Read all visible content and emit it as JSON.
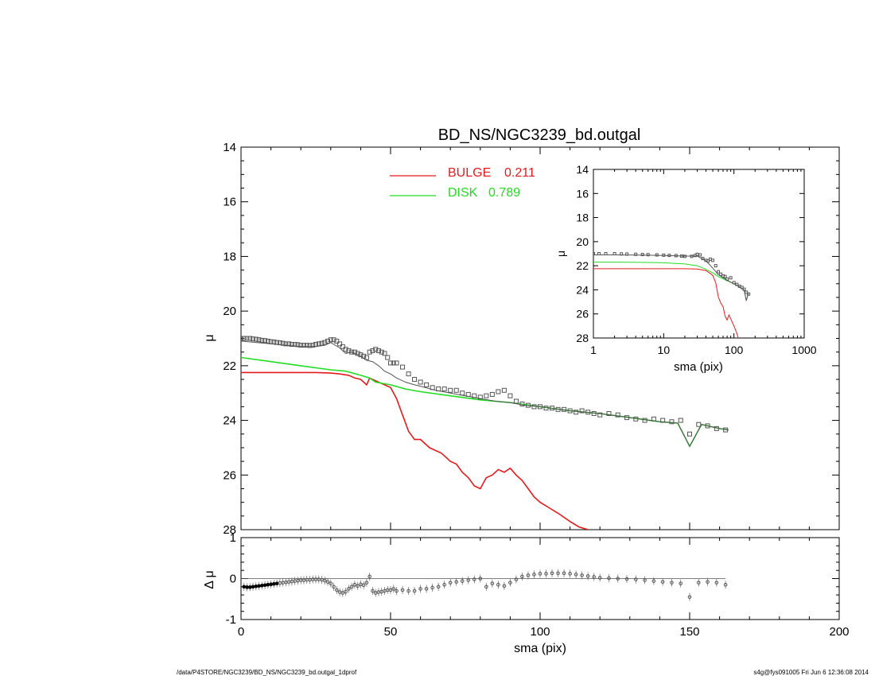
{
  "title": "BD_NS/NGC3239_bd.outgal",
  "footer": {
    "left": "/data/P4STORE/NGC3239/BD_NS/NGC3239_bd.outgal_1dprof",
    "right": "s4g@fys091005  Fri Jun  6 12:36:08 2014"
  },
  "colors": {
    "bulge": "#e8191c",
    "disk": "#22dd22",
    "total": "#555555",
    "data": "#555555",
    "axes": "#000000"
  },
  "chart_data": [
    {
      "id": "main",
      "type": "line",
      "title": "BD_NS/NGC3239_bd.outgal",
      "xlabel": "",
      "ylabel": "μ",
      "xlim": [
        0,
        200
      ],
      "ylim": [
        28,
        14
      ],
      "xticks": [
        "0",
        "50",
        "100",
        "150",
        "200"
      ],
      "yticks": [
        "14",
        "16",
        "18",
        "20",
        "22",
        "24",
        "26",
        "28"
      ],
      "legend": {
        "placement": "top-center",
        "entries": [
          {
            "label": "BULGE",
            "value": "0.211",
            "color": "#e8191c"
          },
          {
            "label": "DISK",
            "value": "0.789",
            "color": "#22dd22"
          }
        ]
      },
      "series": [
        {
          "name": "BULGE",
          "style": "line",
          "color": "#e8191c",
          "x": [
            0,
            5,
            10,
            15,
            20,
            25,
            30,
            33,
            36,
            38,
            40,
            42,
            43,
            45,
            47,
            50,
            52,
            54,
            56,
            58,
            60,
            63,
            65,
            67,
            70,
            72,
            74,
            76,
            78,
            80,
            82,
            84,
            86,
            88,
            90,
            92,
            94,
            96,
            98,
            100,
            103,
            106,
            110,
            113,
            116,
            118
          ],
          "y": [
            22.25,
            22.25,
            22.25,
            22.25,
            22.25,
            22.25,
            22.27,
            22.3,
            22.35,
            22.45,
            22.5,
            22.7,
            22.45,
            22.55,
            22.65,
            22.8,
            23.2,
            23.8,
            24.4,
            24.7,
            24.7,
            25.0,
            25.1,
            25.2,
            25.5,
            25.6,
            25.9,
            26.1,
            26.4,
            26.5,
            26.1,
            26.0,
            25.8,
            25.9,
            25.75,
            26.0,
            26.2,
            26.5,
            26.8,
            27.0,
            27.2,
            27.4,
            27.7,
            27.9,
            28.0,
            28.2
          ]
        },
        {
          "name": "DISK",
          "style": "line",
          "color": "#22dd22",
          "x": [
            0,
            10,
            20,
            30,
            35,
            40,
            43,
            45,
            50,
            55,
            60,
            70,
            80,
            90,
            100,
            110,
            120,
            130,
            140,
            146,
            150,
            154,
            160,
            163
          ],
          "y": [
            21.7,
            21.85,
            22.0,
            22.15,
            22.2,
            22.35,
            22.45,
            22.6,
            22.7,
            22.85,
            22.95,
            23.1,
            23.25,
            23.35,
            23.5,
            23.65,
            23.75,
            23.9,
            24.05,
            24.1,
            24.95,
            24.15,
            24.3,
            24.35
          ]
        },
        {
          "name": "",
          "style": "line",
          "color": "#555555",
          "x": [
            0,
            10,
            20,
            25,
            28,
            30,
            33,
            35,
            37,
            40,
            42,
            44,
            46,
            48,
            50,
            52,
            55,
            58,
            60,
            65,
            70,
            75,
            80,
            85,
            90,
            95,
            100,
            110,
            120,
            130,
            140,
            146,
            150,
            154,
            160,
            163
          ],
          "y": [
            21.1,
            21.2,
            21.3,
            21.3,
            21.25,
            21.15,
            21.35,
            21.55,
            21.5,
            21.65,
            21.8,
            21.85,
            22.0,
            22.2,
            22.3,
            22.45,
            22.6,
            22.7,
            22.75,
            22.9,
            23.0,
            23.1,
            23.2,
            23.3,
            23.35,
            23.45,
            23.5,
            23.65,
            23.75,
            23.9,
            24.05,
            24.1,
            24.95,
            24.15,
            24.3,
            24.35
          ]
        },
        {
          "name": "",
          "style": "squares",
          "color": "#555555",
          "x": [
            0,
            1,
            2,
            3,
            4,
            5,
            6,
            7,
            8,
            9,
            10,
            11,
            12,
            13,
            14,
            15,
            16,
            17,
            18,
            19,
            20,
            21,
            22,
            23,
            24,
            25,
            26,
            27,
            28,
            29,
            30,
            31,
            32,
            33,
            34,
            35,
            36,
            37,
            38,
            39,
            40,
            41,
            42,
            43,
            44,
            45,
            46,
            47,
            48,
            49,
            50,
            51,
            52,
            54,
            56,
            58,
            60,
            62,
            64,
            66,
            68,
            70,
            72,
            74,
            76,
            78,
            80,
            82,
            84,
            86,
            88,
            90,
            92,
            94,
            96,
            98,
            100,
            102,
            104,
            106,
            108,
            110,
            112,
            114,
            116,
            118,
            120,
            123,
            126,
            129,
            132,
            135,
            138,
            141,
            144,
            147,
            150,
            153,
            156,
            159,
            162
          ],
          "y": [
            21.0,
            21.0,
            21.0,
            21.0,
            21.02,
            21.03,
            21.05,
            21.07,
            21.08,
            21.1,
            21.12,
            21.13,
            21.15,
            21.16,
            21.18,
            21.2,
            21.2,
            21.22,
            21.22,
            21.23,
            21.25,
            21.25,
            21.25,
            21.26,
            21.25,
            21.22,
            21.2,
            21.18,
            21.15,
            21.1,
            21.05,
            21.05,
            21.1,
            21.2,
            21.3,
            21.4,
            21.45,
            21.5,
            21.5,
            21.55,
            21.6,
            21.65,
            21.7,
            21.5,
            21.45,
            21.4,
            21.45,
            21.5,
            21.55,
            21.7,
            21.9,
            21.9,
            21.9,
            22.05,
            22.3,
            22.5,
            22.6,
            22.7,
            22.8,
            22.85,
            22.85,
            22.9,
            22.9,
            23.0,
            23.05,
            23.1,
            23.15,
            23.1,
            23.05,
            22.95,
            22.9,
            23.1,
            23.3,
            23.4,
            23.45,
            23.5,
            23.5,
            23.55,
            23.55,
            23.6,
            23.6,
            23.65,
            23.7,
            23.65,
            23.7,
            23.75,
            23.8,
            23.75,
            23.8,
            23.9,
            23.95,
            24.0,
            23.95,
            24.0,
            24.05,
            24.0,
            24.5,
            24.15,
            24.2,
            24.3,
            24.35
          ]
        }
      ]
    },
    {
      "id": "inset",
      "type": "line",
      "title": "",
      "xlabel": "sma (pix)",
      "ylabel": "μ",
      "xscale": "log",
      "xlim": [
        1,
        1000
      ],
      "ylim": [
        28,
        14
      ],
      "xticks": [
        "1",
        "10",
        "100",
        "1000"
      ],
      "yticks": [
        "14",
        "16",
        "18",
        "20",
        "22",
        "24",
        "26",
        "28"
      ],
      "series": [
        {
          "name": "BULGE",
          "style": "line",
          "color": "#e8191c",
          "x": [
            1,
            2,
            5,
            10,
            20,
            30,
            40,
            45,
            50,
            55,
            60,
            65,
            70,
            75,
            80,
            85,
            90,
            100,
            110,
            118
          ],
          "y": [
            22.25,
            22.25,
            22.25,
            22.25,
            22.25,
            22.27,
            22.4,
            22.6,
            22.8,
            23.4,
            24.6,
            25.1,
            25.4,
            26.2,
            26.5,
            26.1,
            26.4,
            27.0,
            27.6,
            28.2
          ]
        },
        {
          "name": "DISK",
          "style": "line",
          "color": "#22dd22",
          "x": [
            1,
            2,
            5,
            10,
            20,
            30,
            40,
            50,
            60,
            80,
            100,
            120,
            140,
            150,
            160
          ],
          "y": [
            21.7,
            21.7,
            21.72,
            21.75,
            21.85,
            22.0,
            22.3,
            22.6,
            22.9,
            23.25,
            23.5,
            23.75,
            24.05,
            24.9,
            24.3
          ]
        },
        {
          "name": "",
          "style": "line",
          "color": "#555555",
          "x": [
            1,
            2,
            5,
            10,
            20,
            30,
            35,
            40,
            45,
            50,
            60,
            80,
            100,
            120,
            140,
            150,
            160
          ],
          "y": [
            21.1,
            21.1,
            21.12,
            21.15,
            21.2,
            21.2,
            21.4,
            21.6,
            21.9,
            22.2,
            22.75,
            23.2,
            23.5,
            23.75,
            24.05,
            24.9,
            24.3
          ]
        },
        {
          "name": "",
          "style": "squares",
          "color": "#555555",
          "x": [
            1,
            1.2,
            1.5,
            2,
            2.5,
            3,
            4,
            5,
            6,
            8,
            10,
            12,
            15,
            18,
            20,
            25,
            28,
            30,
            33,
            36,
            40,
            43,
            46,
            50,
            55,
            60,
            65,
            70,
            75,
            80,
            90,
            100,
            110,
            120,
            130,
            140,
            150,
            162
          ],
          "y": [
            21.0,
            21.0,
            21.0,
            21.0,
            21.02,
            21.03,
            21.05,
            21.07,
            21.08,
            21.1,
            21.12,
            21.14,
            21.16,
            21.2,
            21.22,
            21.22,
            21.15,
            21.05,
            21.1,
            21.4,
            21.55,
            21.6,
            21.45,
            21.55,
            22.0,
            22.5,
            22.7,
            22.85,
            22.9,
            23.1,
            23.0,
            23.4,
            23.55,
            23.7,
            23.8,
            23.95,
            24.2,
            24.35
          ]
        }
      ]
    },
    {
      "id": "residual",
      "type": "scatter",
      "title": "",
      "xlabel": "sma (pix)",
      "ylabel": "Δ μ",
      "xlim": [
        0,
        200
      ],
      "ylim": [
        -1,
        1
      ],
      "xticks": [
        "0",
        "50",
        "100",
        "150",
        "200"
      ],
      "yticks": [
        "-1",
        "0",
        "1"
      ],
      "series": [
        {
          "name": "",
          "style": "circles",
          "color": "#555555",
          "x": [
            1,
            2,
            3,
            4,
            5,
            6,
            7,
            8,
            9,
            10,
            11,
            12,
            13,
            14,
            15,
            16,
            17,
            18,
            19,
            20,
            21,
            22,
            23,
            24,
            25,
            26,
            27,
            28,
            29,
            30,
            31,
            32,
            33,
            34,
            35,
            36,
            37,
            38,
            39,
            40,
            41,
            42,
            43,
            44,
            45,
            46,
            47,
            48,
            49,
            50,
            51,
            52,
            54,
            56,
            58,
            60,
            62,
            64,
            66,
            68,
            70,
            72,
            74,
            76,
            78,
            80,
            82,
            84,
            86,
            88,
            90,
            92,
            94,
            96,
            98,
            100,
            102,
            104,
            106,
            108,
            110,
            112,
            114,
            116,
            118,
            120,
            123,
            126,
            129,
            132,
            135,
            138,
            141,
            144,
            147,
            150,
            153,
            156,
            159,
            162
          ],
          "y": [
            -0.2,
            -0.21,
            -0.21,
            -0.2,
            -0.19,
            -0.18,
            -0.17,
            -0.16,
            -0.15,
            -0.14,
            -0.13,
            -0.12,
            -0.11,
            -0.1,
            -0.09,
            -0.08,
            -0.07,
            -0.06,
            -0.05,
            -0.04,
            -0.04,
            -0.03,
            -0.03,
            -0.02,
            -0.02,
            -0.02,
            -0.03,
            -0.05,
            -0.08,
            -0.12,
            -0.2,
            -0.28,
            -0.33,
            -0.35,
            -0.32,
            -0.25,
            -0.2,
            -0.15,
            -0.18,
            -0.14,
            -0.16,
            -0.1,
            0.05,
            -0.3,
            -0.35,
            -0.33,
            -0.32,
            -0.3,
            -0.28,
            -0.28,
            -0.25,
            -0.3,
            -0.28,
            -0.3,
            -0.3,
            -0.25,
            -0.25,
            -0.22,
            -0.2,
            -0.15,
            -0.1,
            -0.08,
            -0.06,
            -0.04,
            -0.02,
            0.0,
            -0.2,
            -0.12,
            -0.15,
            -0.18,
            -0.1,
            -0.02,
            0.05,
            0.08,
            0.1,
            0.12,
            0.12,
            0.13,
            0.13,
            0.13,
            0.12,
            0.1,
            0.08,
            0.06,
            0.04,
            0.02,
            0.01,
            0.0,
            -0.01,
            -0.02,
            -0.04,
            -0.06,
            -0.08,
            -0.1,
            -0.12,
            -0.45,
            -0.1,
            -0.08,
            -0.1,
            -0.15
          ]
        }
      ]
    }
  ]
}
